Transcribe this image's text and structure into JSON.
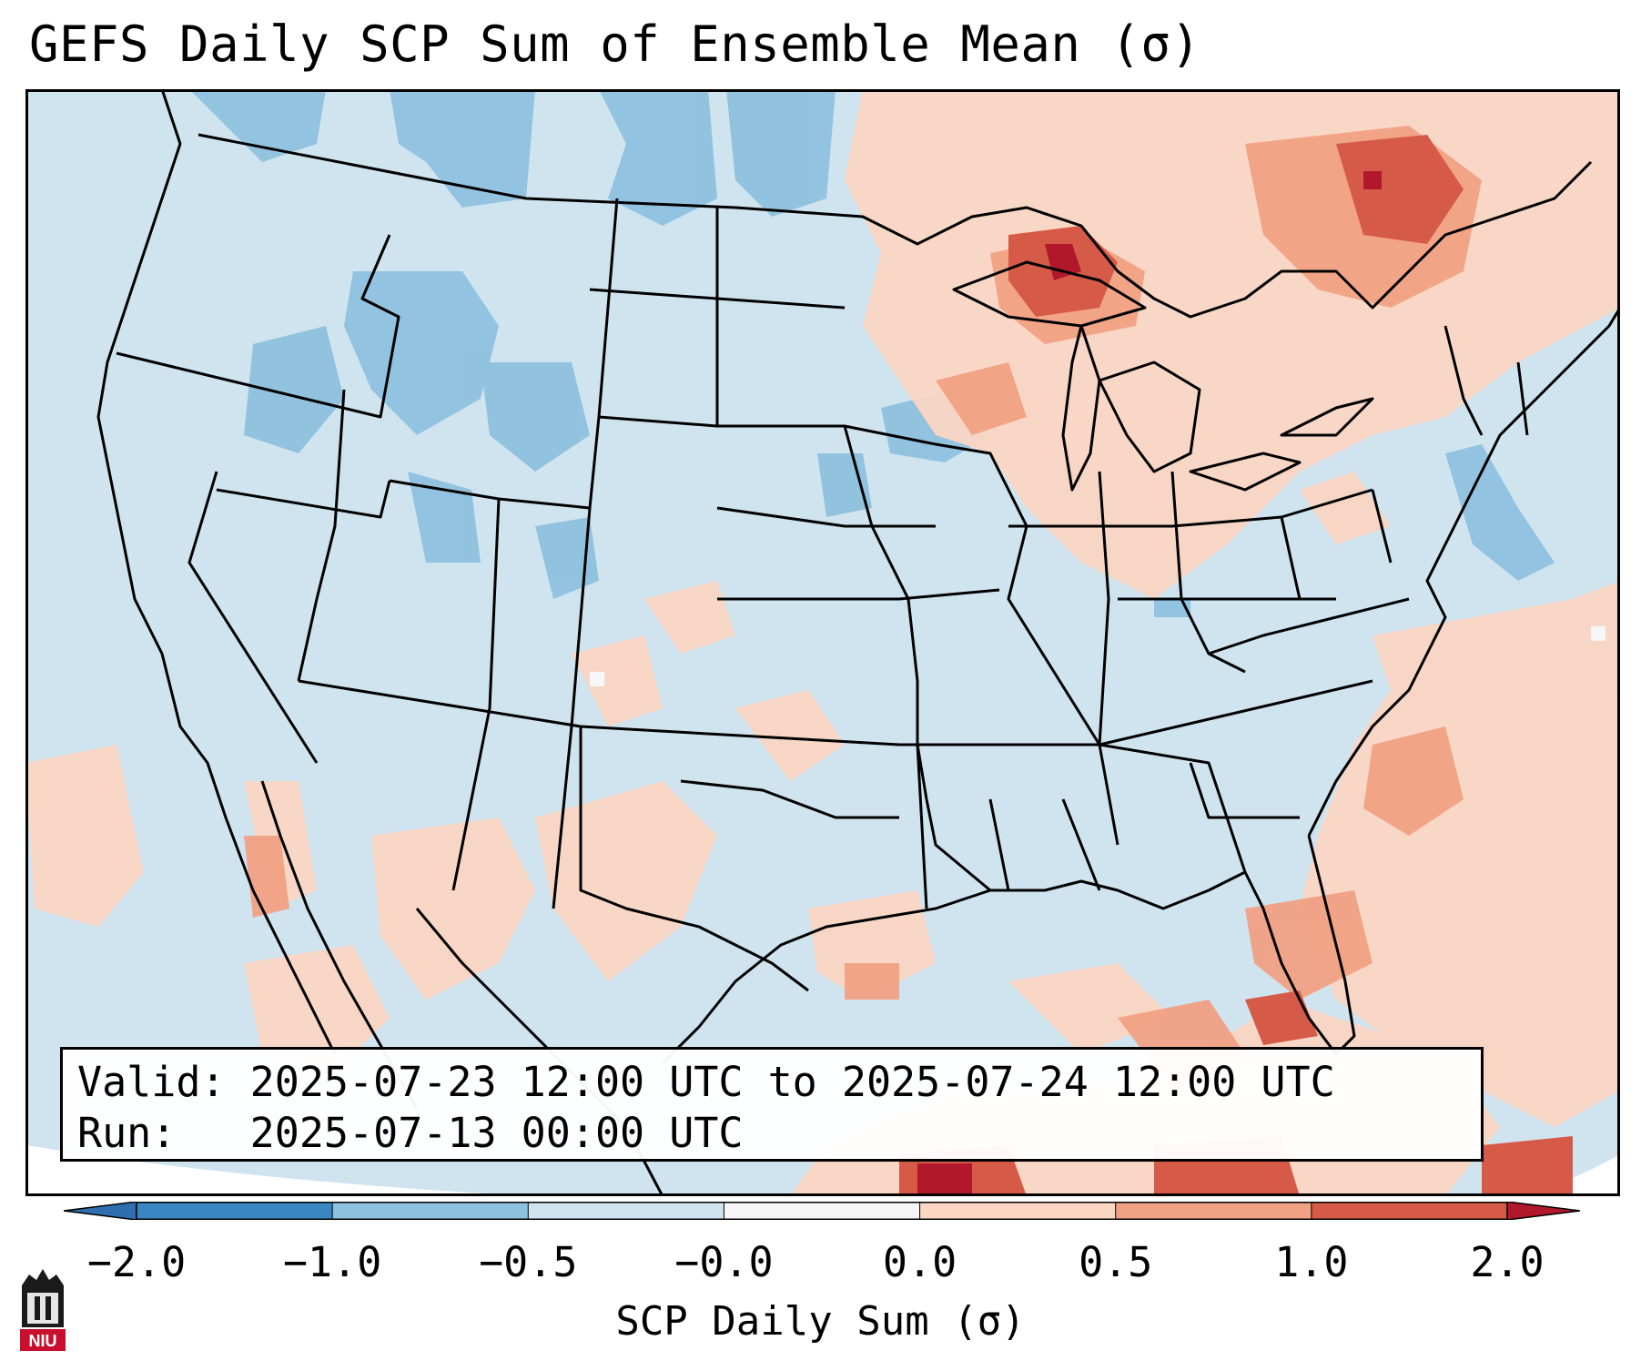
{
  "title": "GEFS Daily SCP Sum of Ensemble Mean (σ)",
  "info": {
    "valid_line": "Valid: 2025-07-23 12:00 UTC to 2025-07-24 12:00 UTC",
    "run_line": "Run:   2025-07-13 00:00 UTC"
  },
  "colorbar": {
    "label": "SCP Daily Sum (σ)",
    "ticks": [
      "−2.0",
      "−1.0",
      "−0.5",
      "−0.0",
      "0.0",
      "0.5",
      "1.0",
      "2.0"
    ],
    "colors": [
      "#3a86c2",
      "#8ec1de",
      "#d0e4f0",
      "#f7f7f7",
      "#fbd6c3",
      "#f1a184",
      "#d65a48"
    ],
    "extend_low_color": "#2f6fb0",
    "extend_high_color": "#b2182b"
  },
  "map": {
    "background_color": "#d0e4f0",
    "strong_negative_color": "#8ec1de",
    "light_positive_color": "#fbd6c3",
    "moderate_positive_color": "#f1a184",
    "strong_positive_color": "#d65a48",
    "extreme_positive_color": "#b2182b",
    "region": "Contiguous United States"
  },
  "logo": {
    "text": "NIU",
    "color": "#c8102e"
  }
}
